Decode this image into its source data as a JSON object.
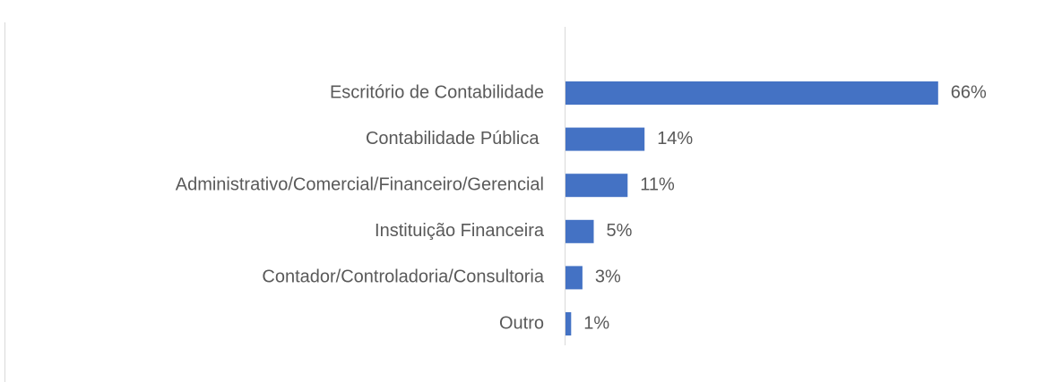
{
  "chart_data": {
    "type": "hbar",
    "categories": [
      "Escritório de Contabilidade",
      "Contabilidade Pública ",
      "Administrativo/Comercial/Financeiro/Gerencial",
      "Instituição Financeira",
      "Contador/Controladoria/Consultoria",
      "Outro"
    ],
    "values": [
      66,
      14,
      11,
      5,
      3,
      1
    ],
    "value_labels": [
      "66%",
      "14%",
      "11%",
      "5%",
      "3%",
      "1%"
    ],
    "color": "#4472c4"
  }
}
